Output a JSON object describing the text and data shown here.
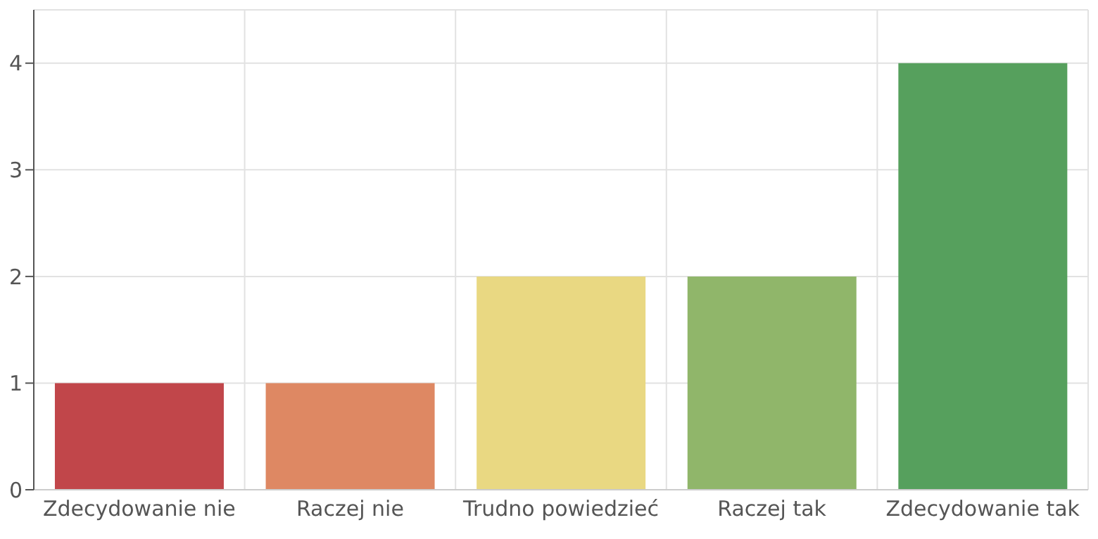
{
  "chart_data": {
    "type": "bar",
    "categories": [
      "Zdecydowanie nie",
      "Raczej nie",
      "Trudno powiedzieć",
      "Raczej tak",
      "Zdecydowanie tak"
    ],
    "values": [
      1,
      1,
      2,
      2,
      4
    ],
    "colors": [
      "#c1464a",
      "#de8863",
      "#e9d882",
      "#90b66a",
      "#56a05d"
    ],
    "ylim": [
      0,
      4.5
    ],
    "yticks": [
      0,
      1,
      2,
      3,
      4
    ],
    "grid": true
  }
}
